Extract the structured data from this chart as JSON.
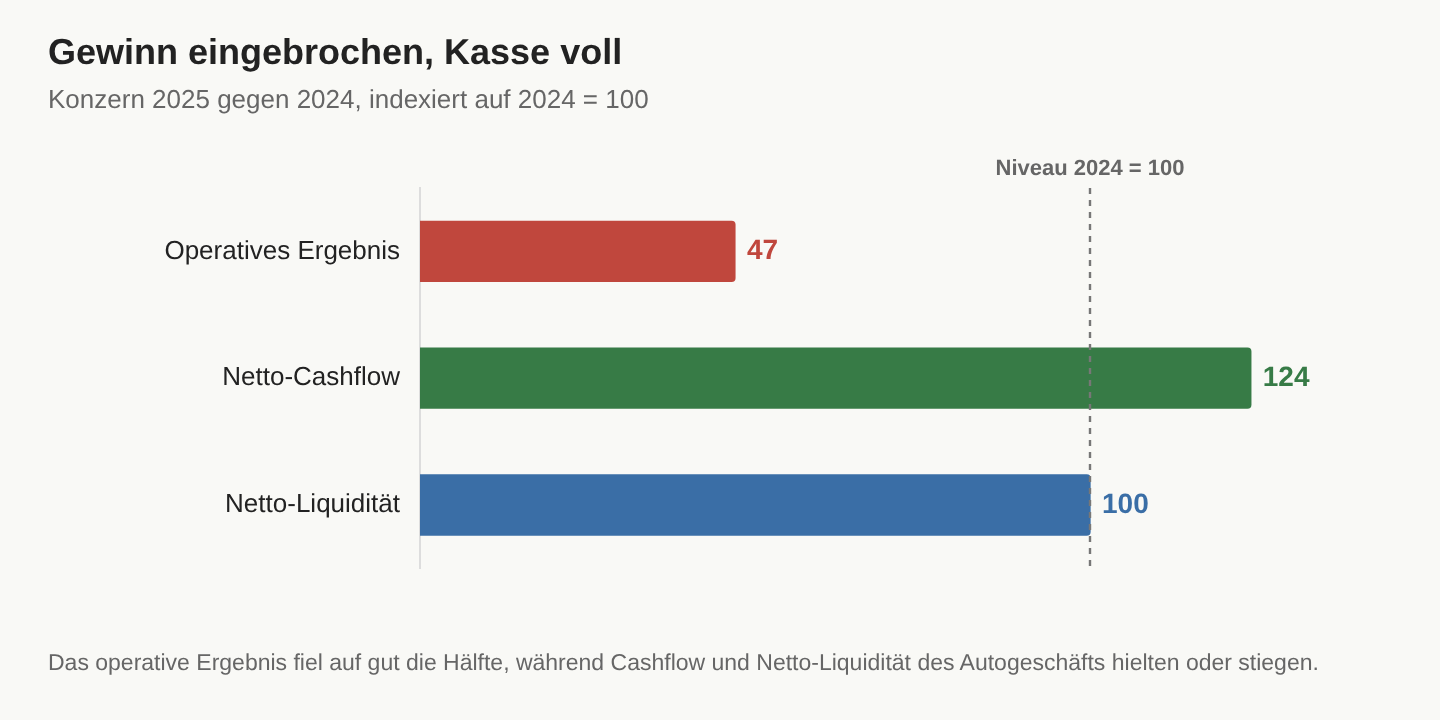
{
  "chart_data": {
    "type": "bar",
    "orientation": "horizontal",
    "title": "Gewinn eingebrochen, Kasse voll",
    "subtitle": "Konzern 2025 gegen 2024, indexiert auf 2024 = 100",
    "categories": [
      "Operatives Ergebnis",
      "Netto-Cashflow",
      "Netto-Liquidität"
    ],
    "values": [
      47,
      124,
      100
    ],
    "colors": [
      "#c0473d",
      "#377b46",
      "#3a6ea6"
    ],
    "data_labels": true,
    "grid": false,
    "legend": false,
    "tick_labels": "y",
    "ref_lines": [
      {
        "axis": "x",
        "value": 100,
        "label": "Niveau 2024 = 100",
        "color": "#777777",
        "line_style": "dashed"
      }
    ],
    "annotations": [
      "Das operative Ergebnis fiel auf gut die Hälfte, während Cashflow und Netto-Liquidität des Autogeschäfts hielten oder stiegen."
    ]
  }
}
